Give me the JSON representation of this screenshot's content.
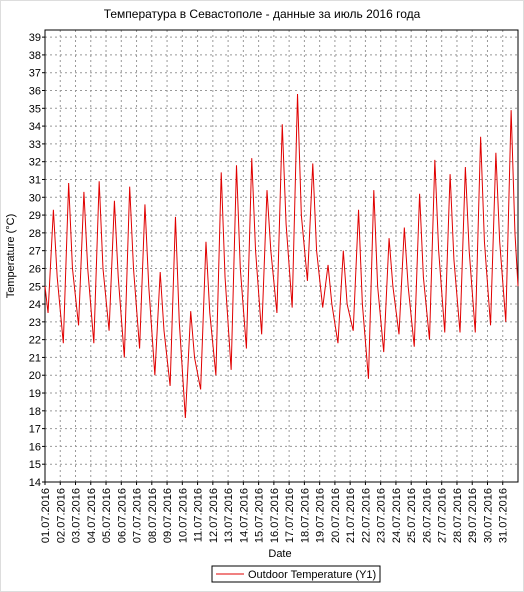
{
  "chart_data": {
    "type": "line",
    "title": "Температура в Севастополе - данные за июль 2016 года",
    "xlabel": "Date",
    "ylabel": "Temperature (°C)",
    "x": [
      0,
      0.2,
      0.55,
      0.8,
      1.2,
      1.55,
      1.8,
      2.2,
      2.55,
      2.8,
      3.2,
      3.55,
      3.8,
      4.2,
      4.55,
      4.8,
      5.2,
      5.55,
      5.8,
      6.2,
      6.55,
      6.8,
      7.2,
      7.55,
      7.8,
      8.2,
      8.55,
      8.8,
      9.2,
      9.55,
      9.8,
      10.2,
      10.55,
      10.8,
      11.2,
      11.55,
      11.8,
      12.2,
      12.55,
      12.8,
      13.2,
      13.55,
      13.8,
      14.2,
      14.55,
      14.8,
      15.2,
      15.55,
      15.8,
      16.2,
      16.55,
      16.8,
      17.2,
      17.55,
      17.8,
      18.2,
      18.55,
      18.8,
      19.2,
      19.55,
      19.8,
      20.2,
      20.55,
      20.8,
      21.2,
      21.55,
      21.8,
      22.2,
      22.55,
      22.8,
      23.2,
      23.55,
      23.8,
      24.2,
      24.55,
      24.8,
      25.2,
      25.55,
      25.8,
      26.2,
      26.55,
      26.8,
      27.2,
      27.55,
      27.8,
      28.2,
      28.55,
      28.8,
      29.2,
      29.55,
      29.8,
      30.2,
      30.55,
      30.8,
      31
    ],
    "series": [
      {
        "name": "Outdoor Temperature (Y1)",
        "color": "#e00000",
        "values": [
          25,
          23.5,
          29.3,
          25.5,
          21.8,
          30.8,
          26,
          22.8,
          30.3,
          26,
          21.8,
          30.9,
          26,
          22.5,
          29.8,
          25.5,
          21,
          30.6,
          26,
          21.5,
          29.6,
          25,
          20,
          25.8,
          22.5,
          19.4,
          28.9,
          23,
          17.6,
          23.6,
          21,
          19.2,
          27.5,
          23.5,
          20,
          31.4,
          25.5,
          20.3,
          31.8,
          26,
          21.5,
          32.2,
          27,
          22.3,
          30.4,
          27,
          23.5,
          34.1,
          28.5,
          23.8,
          35.8,
          29,
          25.3,
          31.9,
          27,
          23.8,
          26.2,
          24,
          21.8,
          27,
          24,
          22.5,
          29.3,
          24,
          19.8,
          30.4,
          25,
          21.3,
          27.7,
          25,
          22.3,
          28.3,
          25,
          21.6,
          30.2,
          25.5,
          22,
          32.1,
          27,
          22.4,
          31.3,
          26.5,
          22.4,
          31.7,
          27,
          22.4,
          33.4,
          27.5,
          22.8,
          32.5,
          27.5,
          23,
          34.9,
          28,
          25
        ]
      }
    ],
    "xlim": [
      0,
      31
    ],
    "xticks": [
      {
        "value": 0,
        "label": "01.07.2016"
      },
      {
        "value": 1,
        "label": "02.07.2016"
      },
      {
        "value": 2,
        "label": "03.07.2016"
      },
      {
        "value": 3,
        "label": "04.07.2016"
      },
      {
        "value": 4,
        "label": "05.07.2016"
      },
      {
        "value": 5,
        "label": "06.07.2016"
      },
      {
        "value": 6,
        "label": "07.07.2016"
      },
      {
        "value": 7,
        "label": "08.07.2016"
      },
      {
        "value": 8,
        "label": "09.07.2016"
      },
      {
        "value": 9,
        "label": "10.07.2016"
      },
      {
        "value": 10,
        "label": "11.07.2016"
      },
      {
        "value": 11,
        "label": "12.07.2016"
      },
      {
        "value": 12,
        "label": "13.07.2016"
      },
      {
        "value": 13,
        "label": "14.07.2016"
      },
      {
        "value": 14,
        "label": "15.07.2016"
      },
      {
        "value": 15,
        "label": "16.07.2016"
      },
      {
        "value": 16,
        "label": "17.07.2016"
      },
      {
        "value": 17,
        "label": "18.07.2016"
      },
      {
        "value": 18,
        "label": "19.07.2016"
      },
      {
        "value": 19,
        "label": "20.07.2016"
      },
      {
        "value": 20,
        "label": "21.07.2016"
      },
      {
        "value": 21,
        "label": "22.07.2016"
      },
      {
        "value": 22,
        "label": "23.07.2016"
      },
      {
        "value": 23,
        "label": "24.07.2016"
      },
      {
        "value": 24,
        "label": "25.07.2016"
      },
      {
        "value": 25,
        "label": "26.07.2016"
      },
      {
        "value": 26,
        "label": "27.07.2016"
      },
      {
        "value": 27,
        "label": "28.07.2016"
      },
      {
        "value": 28,
        "label": "29.07.2016"
      },
      {
        "value": 29,
        "label": "30.07.2016"
      },
      {
        "value": 30,
        "label": "31.07.2016"
      }
    ],
    "ylim": [
      14,
      39.4
    ],
    "yticks": [
      14,
      15,
      16,
      17,
      18,
      19,
      20,
      21,
      22,
      23,
      24,
      25,
      26,
      27,
      28,
      29,
      30,
      31,
      32,
      33,
      34,
      35,
      36,
      37,
      38,
      39
    ],
    "grid": true
  }
}
